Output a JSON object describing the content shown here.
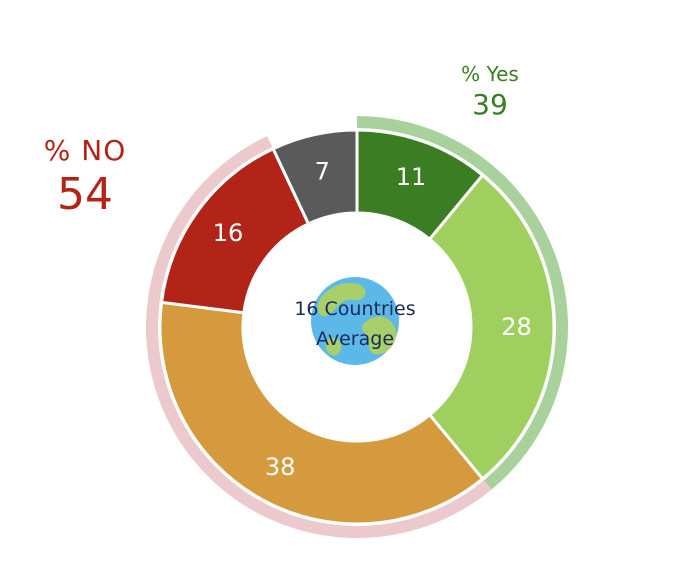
{
  "chart_data": {
    "type": "pie",
    "center_label": [
      "16 Countries",
      "Average"
    ],
    "slices": [
      {
        "label": "11",
        "value": 11,
        "color": "#3a7d23"
      },
      {
        "label": "28",
        "value": 28,
        "color": "#9fcf5e"
      },
      {
        "label": "38",
        "value": 38,
        "color": "#d69a3e"
      },
      {
        "label": "16",
        "value": 16,
        "color": "#b22418"
      },
      {
        "label": "7",
        "value": 7,
        "color": "#5a5a5a"
      }
    ],
    "groups": [
      {
        "title": "% Yes",
        "value": "39",
        "color": "#3a7d23",
        "ring_color": "#a8d19b"
      },
      {
        "title": "% NO",
        "value": "54",
        "color": "#b22418",
        "ring_color": "#ebc9cc"
      }
    ]
  }
}
